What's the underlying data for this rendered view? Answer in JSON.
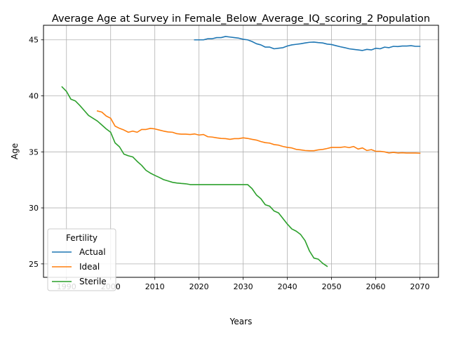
{
  "chart_data": {
    "type": "line",
    "title": "Average Age at Survey in Female_Below_Average_IQ_scoring_2 Population",
    "xlabel": "Years",
    "ylabel": "Age",
    "xlim": [
      1984.8,
      2074.2
    ],
    "ylim": [
      23.8,
      46.3
    ],
    "xticks": [
      1990,
      2000,
      2010,
      2020,
      2030,
      2040,
      2050,
      2060,
      2070
    ],
    "yticks": [
      25,
      30,
      35,
      40,
      45
    ],
    "grid": true,
    "legend": {
      "title": "Fertility",
      "placement": "lower-left"
    },
    "series": [
      {
        "name": "Actual",
        "color": "#1f77b4",
        "x": [
          2019,
          2020,
          2021,
          2022,
          2023,
          2024,
          2025,
          2026,
          2027,
          2028,
          2029,
          2030,
          2031,
          2032,
          2033,
          2034,
          2035,
          2036,
          2037,
          2038,
          2039,
          2040,
          2041,
          2042,
          2043,
          2044,
          2045,
          2046,
          2047,
          2048,
          2049,
          2050,
          2051,
          2052,
          2053,
          2054,
          2055,
          2056,
          2057,
          2058,
          2059,
          2060,
          2061,
          2062,
          2063,
          2064,
          2065,
          2066,
          2067,
          2068,
          2069,
          2070
        ],
        "values": [
          45.0,
          45.0,
          45.0,
          45.1,
          45.1,
          45.2,
          45.2,
          45.3,
          45.25,
          45.2,
          45.15,
          45.05,
          45.0,
          44.85,
          44.65,
          44.55,
          44.35,
          44.35,
          44.2,
          44.25,
          44.3,
          44.45,
          44.55,
          44.6,
          44.65,
          44.72,
          44.78,
          44.8,
          44.75,
          44.72,
          44.62,
          44.58,
          44.48,
          44.38,
          44.3,
          44.2,
          44.15,
          44.1,
          44.05,
          44.15,
          44.1,
          44.25,
          44.2,
          44.35,
          44.3,
          44.42,
          44.4,
          44.45,
          44.45,
          44.48,
          44.42,
          44.42
        ]
      },
      {
        "name": "Ideal",
        "color": "#ff7f0e",
        "x": [
          1997,
          1998,
          1999,
          2000,
          2001,
          2002,
          2003,
          2004,
          2005,
          2006,
          2007,
          2008,
          2009,
          2010,
          2011,
          2012,
          2013,
          2014,
          2015,
          2016,
          2017,
          2018,
          2019,
          2020,
          2021,
          2022,
          2023,
          2024,
          2025,
          2026,
          2027,
          2028,
          2029,
          2030,
          2031,
          2032,
          2033,
          2034,
          2035,
          2036,
          2037,
          2038,
          2039,
          2040,
          2041,
          2042,
          2043,
          2044,
          2045,
          2046,
          2047,
          2048,
          2049,
          2050,
          2051,
          2052,
          2053,
          2054,
          2055,
          2056,
          2057,
          2058,
          2059,
          2060,
          2061,
          2062,
          2063,
          2064,
          2065,
          2066,
          2067,
          2068,
          2069,
          2070
        ],
        "values": [
          38.65,
          38.55,
          38.2,
          38.0,
          37.3,
          37.1,
          36.95,
          36.75,
          36.85,
          36.75,
          37.0,
          37.0,
          37.1,
          37.05,
          36.95,
          36.85,
          36.78,
          36.75,
          36.62,
          36.58,
          36.58,
          36.55,
          36.6,
          36.5,
          36.55,
          36.35,
          36.32,
          36.25,
          36.2,
          36.18,
          36.12,
          36.18,
          36.18,
          36.25,
          36.2,
          36.12,
          36.05,
          35.92,
          35.82,
          35.78,
          35.65,
          35.6,
          35.48,
          35.4,
          35.35,
          35.22,
          35.18,
          35.12,
          35.1,
          35.1,
          35.18,
          35.22,
          35.3,
          35.4,
          35.4,
          35.4,
          35.45,
          35.38,
          35.48,
          35.25,
          35.35,
          35.12,
          35.2,
          35.05,
          35.05,
          35.0,
          34.9,
          34.95,
          34.9,
          34.92,
          34.9,
          34.9,
          34.9,
          34.88
        ]
      },
      {
        "name": "Sterile",
        "color": "#2ca02c",
        "x": [
          1989,
          1990,
          1991,
          1992,
          1993,
          1994,
          1995,
          1996,
          1997,
          1998,
          1999,
          2000,
          2001,
          2002,
          2003,
          2004,
          2005,
          2006,
          2007,
          2008,
          2009,
          2010,
          2011,
          2012,
          2013,
          2014,
          2015,
          2016,
          2017,
          2018,
          2019,
          2020,
          2021,
          2022,
          2023,
          2024,
          2025,
          2026,
          2027,
          2028,
          2029,
          2030,
          2031,
          2032,
          2033,
          2034,
          2035,
          2036,
          2037,
          2038,
          2039,
          2040,
          2041,
          2042,
          2043,
          2044,
          2045,
          2046,
          2047,
          2048,
          2049
        ],
        "values": [
          40.8,
          40.4,
          39.7,
          39.55,
          39.15,
          38.7,
          38.25,
          38.0,
          37.75,
          37.4,
          37.05,
          36.75,
          35.8,
          35.45,
          34.8,
          34.65,
          34.55,
          34.15,
          33.8,
          33.35,
          33.1,
          32.9,
          32.72,
          32.52,
          32.4,
          32.28,
          32.22,
          32.18,
          32.15,
          32.08,
          32.08,
          32.08,
          32.08,
          32.08,
          32.08,
          32.08,
          32.08,
          32.08,
          32.08,
          32.08,
          32.08,
          32.08,
          32.08,
          31.72,
          31.15,
          30.82,
          30.28,
          30.15,
          29.72,
          29.55,
          29.05,
          28.55,
          28.12,
          27.92,
          27.62,
          27.08,
          26.15,
          25.52,
          25.42,
          25.05,
          24.78
        ]
      }
    ]
  }
}
